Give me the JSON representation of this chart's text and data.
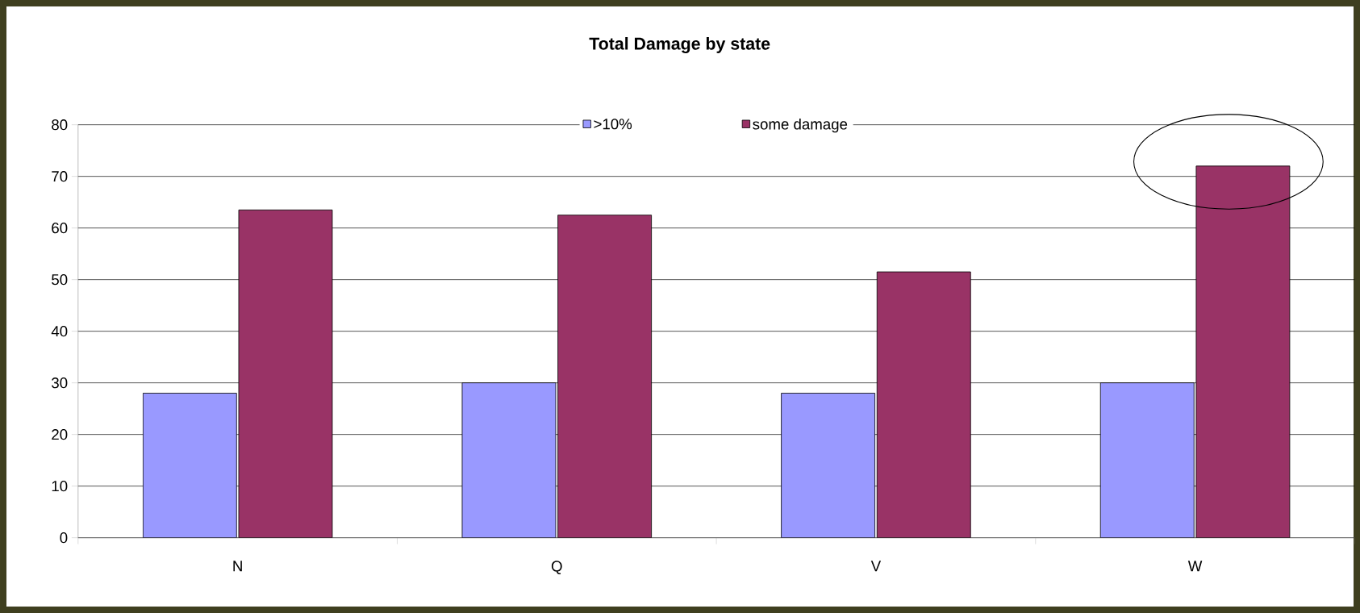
{
  "chart_data": {
    "type": "bar",
    "title": "Total Damage by state",
    "categories": [
      "N",
      "Q",
      "V",
      "W"
    ],
    "series": [
      {
        "name": ">10%",
        "color": "#9999ff",
        "values": [
          28,
          30,
          28,
          30
        ]
      },
      {
        "name": "some damage",
        "color": "#993366",
        "values": [
          63.5,
          62.5,
          51.5,
          72
        ]
      }
    ],
    "ylim": [
      0,
      80
    ],
    "yticks": [
      0,
      10,
      20,
      30,
      40,
      50,
      60,
      70,
      80
    ],
    "grid": "y",
    "legend": "top"
  }
}
